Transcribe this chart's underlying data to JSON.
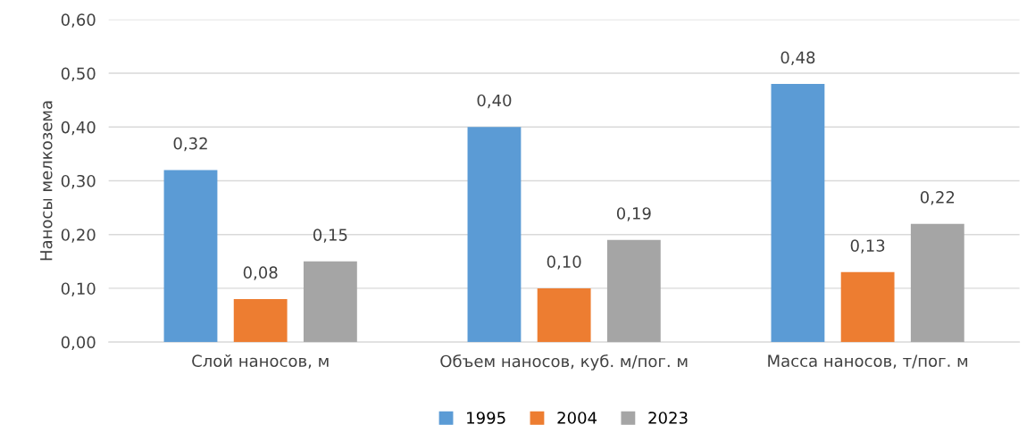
{
  "chart_data": {
    "type": "bar",
    "ylabel": "Наносы мелкозема",
    "categories": [
      "Слой наносов, м",
      "Объем наносов, куб. м/пог. м",
      "Масса наносов, т/пог. м"
    ],
    "series": [
      {
        "name": "1995",
        "color": "#5b9bd5",
        "values": [
          0.32,
          0.4,
          0.48
        ],
        "value_labels": [
          "0,32",
          "0,40",
          "0,48"
        ]
      },
      {
        "name": "2004",
        "color": "#ed7d31",
        "values": [
          0.08,
          0.1,
          0.13
        ],
        "value_labels": [
          "0,08",
          "0,10",
          "0,13"
        ]
      },
      {
        "name": "2023",
        "color": "#a5a5a5",
        "values": [
          0.15,
          0.19,
          0.22
        ],
        "value_labels": [
          "0,15",
          "0,19",
          "0,22"
        ]
      }
    ],
    "ylim": [
      0,
      0.6
    ],
    "yticks": [
      {
        "value": 0,
        "label": "0,00"
      },
      {
        "value": 0.1,
        "label": "0,10"
      },
      {
        "value": 0.2,
        "label": "0,20"
      },
      {
        "value": 0.3,
        "label": "0,30"
      },
      {
        "value": 0.4,
        "label": "0,40"
      },
      {
        "value": 0.5,
        "label": "0,50"
      },
      {
        "value": 0.6,
        "label": "0,60"
      }
    ],
    "grid": "y",
    "legend": "bottom"
  }
}
